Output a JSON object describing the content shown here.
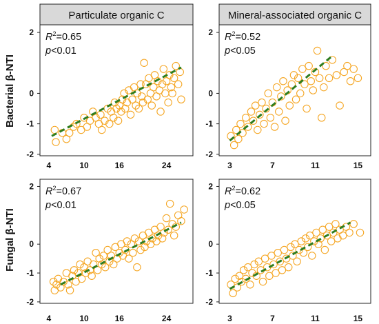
{
  "colors": {
    "point": "#f5a623",
    "trend": "#2e7d1f",
    "title_box": "#d9d9d9",
    "frame": "#222222"
  },
  "columns": [
    "Particulate organic C",
    "Mineral-associated organic C"
  ],
  "rows": [
    "Bacterial β-NTI",
    "Fungal β-NTI"
  ],
  "chart_data": [
    {
      "type": "scatter",
      "title": "Particulate organic C",
      "ylabel": "Bacterial β-NTI",
      "xlim": [
        2.5,
        28.5
      ],
      "ylim": [
        -2.05,
        2.25
      ],
      "xticks": [
        4,
        10,
        16,
        24
      ],
      "yticks": [
        2,
        0,
        -1,
        -2
      ],
      "grid": false,
      "r2_text": "=0.65",
      "p_text": "<0.01",
      "trend": {
        "x": [
          4.5,
          26.5
        ],
        "y": [
          -1.4,
          0.85
        ]
      },
      "points": [
        [
          5,
          -1.2
        ],
        [
          5.2,
          -1.6
        ],
        [
          6.3,
          -1.3
        ],
        [
          7,
          -1.5
        ],
        [
          7.5,
          -1.3
        ],
        [
          8.2,
          -1.1
        ],
        [
          8.7,
          -1.0
        ],
        [
          9.5,
          -1.2
        ],
        [
          10,
          -0.8
        ],
        [
          10.5,
          -1.1
        ],
        [
          11,
          -0.9
        ],
        [
          11.5,
          -0.6
        ],
        [
          12,
          -0.8
        ],
        [
          12.5,
          -1.0
        ],
        [
          12.8,
          -0.7
        ],
        [
          13,
          -1.2
        ],
        [
          13.5,
          -0.9
        ],
        [
          14,
          -0.5
        ],
        [
          14.3,
          -1.0
        ],
        [
          14.6,
          -0.6
        ],
        [
          15,
          -0.8
        ],
        [
          15.2,
          -0.3
        ],
        [
          15.5,
          -0.5
        ],
        [
          15.8,
          -0.9
        ],
        [
          16,
          -0.4
        ],
        [
          16.3,
          -0.6
        ],
        [
          16.5,
          -0.2
        ],
        [
          16.8,
          0.0
        ],
        [
          17,
          -0.5
        ],
        [
          17.3,
          -0.3
        ],
        [
          17.6,
          0.1
        ],
        [
          17.9,
          -0.7
        ],
        [
          18.2,
          -0.2
        ],
        [
          18.5,
          0.2
        ],
        [
          18.8,
          -0.4
        ],
        [
          19,
          0.0
        ],
        [
          19.3,
          -0.5
        ],
        [
          19.6,
          0.3
        ],
        [
          19.8,
          -0.1
        ],
        [
          20,
          -0.3
        ],
        [
          20.2,
          1.0
        ],
        [
          20.5,
          0.3
        ],
        [
          20.8,
          -0.2
        ],
        [
          21,
          0.5
        ],
        [
          21.3,
          0.0
        ],
        [
          21.5,
          -0.4
        ],
        [
          21.8,
          0.2
        ],
        [
          22,
          0.6
        ],
        [
          22.3,
          -0.1
        ],
        [
          22.5,
          0.4
        ],
        [
          22.8,
          0.1
        ],
        [
          23,
          -0.6
        ],
        [
          23.3,
          0.3
        ],
        [
          23.5,
          0.8
        ],
        [
          23.8,
          0.0
        ],
        [
          24,
          0.4
        ],
        [
          24.3,
          -0.3
        ],
        [
          24.5,
          0.6
        ],
        [
          24.8,
          0.2
        ],
        [
          25,
          0.0
        ],
        [
          25.3,
          0.5
        ],
        [
          25.6,
          0.9
        ],
        [
          26,
          0.3
        ],
        [
          26.3,
          0.7
        ],
        [
          26.5,
          -0.2
        ]
      ]
    },
    {
      "type": "scatter",
      "title": "Mineral-associated organic C",
      "ylabel": "Bacterial β-NTI",
      "xlim": [
        2.0,
        16.2
      ],
      "ylim": [
        -2.05,
        2.25
      ],
      "xticks": [
        3,
        7,
        11,
        15
      ],
      "yticks": [
        2,
        0,
        -1,
        -2
      ],
      "grid": false,
      "r2_text": "=0.52",
      "p_text": "<0.05",
      "trend": {
        "x": [
          3.0,
          12.5
        ],
        "y": [
          -1.55,
          1.2
        ]
      },
      "points": [
        [
          3.1,
          -1.4
        ],
        [
          3.4,
          -1.7
        ],
        [
          3.6,
          -1.2
        ],
        [
          3.8,
          -1.5
        ],
        [
          4,
          -1.0
        ],
        [
          4.2,
          -1.3
        ],
        [
          4.5,
          -0.8
        ],
        [
          4.7,
          -1.1
        ],
        [
          5,
          -0.6
        ],
        [
          5.2,
          -0.9
        ],
        [
          5.4,
          -0.4
        ],
        [
          5.6,
          -1.2
        ],
        [
          5.8,
          -0.7
        ],
        [
          6,
          -0.3
        ],
        [
          6.2,
          -1.0
        ],
        [
          6.4,
          -0.5
        ],
        [
          6.6,
          0.0
        ],
        [
          6.8,
          -0.8
        ],
        [
          7,
          -0.3
        ],
        [
          7.2,
          -1.1
        ],
        [
          7.4,
          0.2
        ],
        [
          7.6,
          -0.6
        ],
        [
          7.8,
          -0.1
        ],
        [
          8,
          0.4
        ],
        [
          8.2,
          -0.9
        ],
        [
          8.4,
          0.1
        ],
        [
          8.6,
          -0.4
        ],
        [
          8.8,
          0.3
        ],
        [
          9,
          0.6
        ],
        [
          9.2,
          -0.2
        ],
        [
          9.4,
          0.5
        ],
        [
          9.6,
          0.0
        ],
        [
          9.8,
          0.8
        ],
        [
          10,
          0.3
        ],
        [
          10.2,
          -0.5
        ],
        [
          10.4,
          0.9
        ],
        [
          10.6,
          0.4
        ],
        [
          10.8,
          0.1
        ],
        [
          11,
          0.7
        ],
        [
          11.2,
          1.4
        ],
        [
          11.4,
          0.5
        ],
        [
          11.6,
          -0.8
        ],
        [
          11.8,
          0.2
        ],
        [
          12,
          0.9
        ],
        [
          12.3,
          0.5
        ],
        [
          12.6,
          1.1
        ],
        [
          13,
          0.6
        ],
        [
          13.3,
          -0.4
        ],
        [
          13.7,
          0.7
        ],
        [
          14,
          0.9
        ],
        [
          14.3,
          0.4
        ],
        [
          14.6,
          0.8
        ],
        [
          15,
          0.5
        ]
      ]
    },
    {
      "type": "scatter",
      "title": "",
      "ylabel": "Fungal β-NTI",
      "xlim": [
        2.5,
        28.5
      ],
      "ylim": [
        -2.05,
        2.25
      ],
      "xticks": [
        4,
        10,
        16,
        24
      ],
      "yticks": [
        2,
        0,
        -1,
        -2
      ],
      "grid": false,
      "r2_text": "=0.67",
      "p_text": "<0.01",
      "trend": {
        "x": [
          6.0,
          26.5
        ],
        "y": [
          -1.4,
          0.75
        ]
      },
      "points": [
        [
          4.8,
          -1.3
        ],
        [
          5,
          -1.6
        ],
        [
          5.3,
          -1.4
        ],
        [
          5.6,
          -1.2
        ],
        [
          6,
          -1.5
        ],
        [
          6.5,
          -1.3
        ],
        [
          7,
          -1.0
        ],
        [
          7.3,
          -1.4
        ],
        [
          7.6,
          -1.6
        ],
        [
          8,
          -1.1
        ],
        [
          8.3,
          -0.9
        ],
        [
          8.6,
          -1.3
        ],
        [
          9,
          -1.0
        ],
        [
          9.3,
          -0.7
        ],
        [
          9.6,
          -1.2
        ],
        [
          10,
          -0.8
        ],
        [
          10.3,
          -1.0
        ],
        [
          10.6,
          -0.6
        ],
        [
          11,
          -0.9
        ],
        [
          11.3,
          -1.1
        ],
        [
          11.6,
          -0.7
        ],
        [
          12,
          -0.3
        ],
        [
          12.3,
          -0.9
        ],
        [
          12.6,
          -0.5
        ],
        [
          13,
          -0.7
        ],
        [
          13.3,
          -0.4
        ],
        [
          13.6,
          -0.8
        ],
        [
          14,
          -0.2
        ],
        [
          14.3,
          -0.6
        ],
        [
          14.6,
          -0.4
        ],
        [
          15,
          -0.7
        ],
        [
          15.3,
          -0.1
        ],
        [
          15.6,
          -0.5
        ],
        [
          16,
          -0.3
        ],
        [
          16.3,
          0.0
        ],
        [
          16.6,
          -0.4
        ],
        [
          17,
          -0.2
        ],
        [
          17.3,
          0.1
        ],
        [
          17.6,
          -0.5
        ],
        [
          18,
          0.0
        ],
        [
          18.3,
          -0.3
        ],
        [
          18.6,
          0.2
        ],
        [
          19,
          -0.8
        ],
        [
          19.3,
          0.1
        ],
        [
          19.6,
          -0.2
        ],
        [
          20,
          0.3
        ],
        [
          20.3,
          -0.1
        ],
        [
          20.6,
          0.1
        ],
        [
          21,
          0.4
        ],
        [
          21.3,
          0.0
        ],
        [
          21.6,
          0.2
        ],
        [
          22,
          0.5
        ],
        [
          22.3,
          0.1
        ],
        [
          22.6,
          0.3
        ],
        [
          23,
          0.6
        ],
        [
          23.3,
          0.2
        ],
        [
          23.6,
          0.4
        ],
        [
          24,
          0.9
        ],
        [
          24.3,
          0.5
        ],
        [
          24.6,
          1.4
        ],
        [
          25,
          0.7
        ],
        [
          25.3,
          0.3
        ],
        [
          25.6,
          0.6
        ],
        [
          26,
          1.0
        ],
        [
          26.5,
          0.8
        ],
        [
          27,
          1.2
        ]
      ]
    },
    {
      "type": "scatter",
      "title": "",
      "ylabel": "Fungal β-NTI",
      "xlim": [
        2.0,
        16.2
      ],
      "ylim": [
        -2.05,
        2.25
      ],
      "xticks": [
        3,
        7,
        11,
        15
      ],
      "yticks": [
        2,
        0,
        -1,
        -2
      ],
      "grid": false,
      "r2_text": "=0.62",
      "p_text": "<0.05",
      "trend": {
        "x": [
          3.0,
          14.3
        ],
        "y": [
          -1.55,
          0.75
        ]
      },
      "points": [
        [
          3.1,
          -1.4
        ],
        [
          3.3,
          -1.7
        ],
        [
          3.5,
          -1.2
        ],
        [
          3.7,
          -1.5
        ],
        [
          3.9,
          -1.1
        ],
        [
          4.1,
          -1.3
        ],
        [
          4.3,
          -0.9
        ],
        [
          4.5,
          -1.2
        ],
        [
          4.7,
          -0.8
        ],
        [
          4.9,
          -1.4
        ],
        [
          5.1,
          -1.0
        ],
        [
          5.3,
          -0.7
        ],
        [
          5.5,
          -1.1
        ],
        [
          5.7,
          -0.6
        ],
        [
          5.9,
          -0.9
        ],
        [
          6.1,
          -1.3
        ],
        [
          6.3,
          -0.5
        ],
        [
          6.5,
          -0.8
        ],
        [
          6.7,
          -1.1
        ],
        [
          6.9,
          -0.4
        ],
        [
          7.1,
          -0.7
        ],
        [
          7.3,
          -1.0
        ],
        [
          7.5,
          -0.3
        ],
        [
          7.7,
          -0.6
        ],
        [
          7.9,
          -0.9
        ],
        [
          8.1,
          -0.2
        ],
        [
          8.3,
          -0.5
        ],
        [
          8.5,
          -0.8
        ],
        [
          8.7,
          -0.1
        ],
        [
          8.9,
          -0.4
        ],
        [
          9.1,
          0.0
        ],
        [
          9.3,
          -0.6
        ],
        [
          9.5,
          -0.2
        ],
        [
          9.7,
          0.1
        ],
        [
          9.9,
          -0.3
        ],
        [
          10.1,
          0.2
        ],
        [
          10.3,
          -0.1
        ],
        [
          10.5,
          0.3
        ],
        [
          10.7,
          -0.4
        ],
        [
          10.9,
          0.1
        ],
        [
          11.1,
          0.4
        ],
        [
          11.3,
          0.0
        ],
        [
          11.5,
          0.2
        ],
        [
          11.7,
          0.5
        ],
        [
          11.9,
          -0.2
        ],
        [
          12.1,
          0.3
        ],
        [
          12.3,
          0.6
        ],
        [
          12.5,
          0.1
        ],
        [
          12.7,
          0.4
        ],
        [
          12.9,
          0.7
        ],
        [
          13.1,
          0.2
        ],
        [
          13.3,
          0.5
        ],
        [
          13.6,
          0.3
        ],
        [
          13.9,
          0.6
        ],
        [
          14.2,
          0.4
        ],
        [
          14.6,
          0.7
        ],
        [
          15.2,
          0.4
        ]
      ]
    }
  ]
}
